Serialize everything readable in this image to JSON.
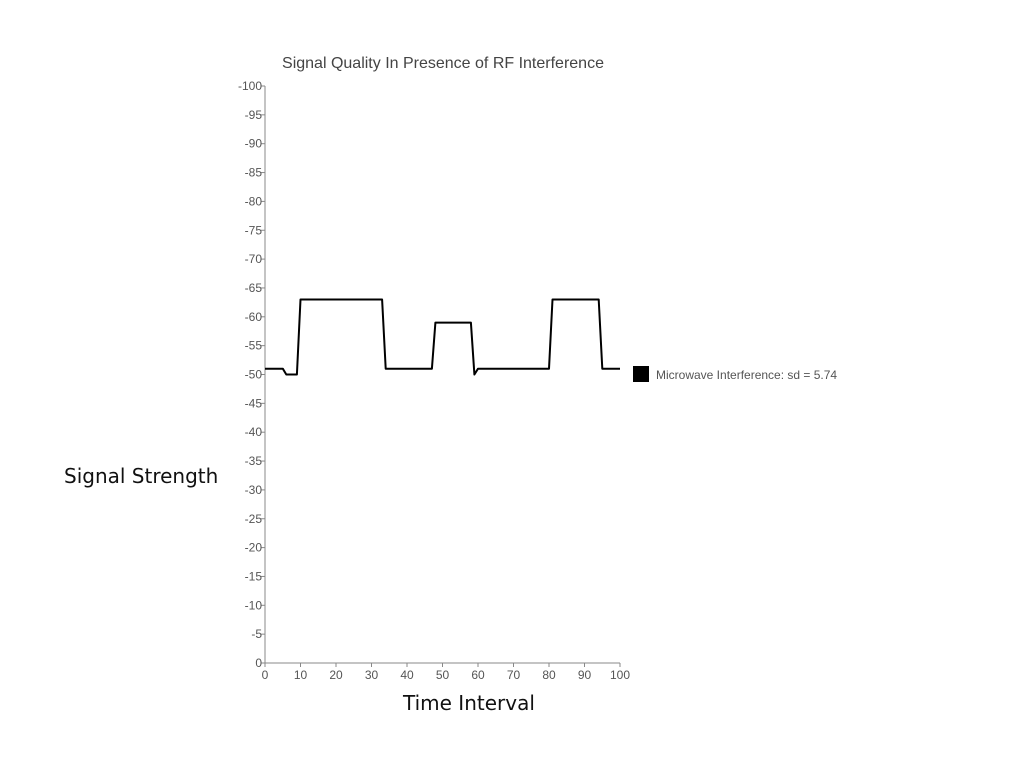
{
  "chart_data": {
    "type": "line",
    "title": "Signal Quality In Presence of RF Interference",
    "xlabel": "Time Interval",
    "ylabel": "Signal Strength",
    "xlim": [
      0,
      100
    ],
    "ylim": [
      0,
      -100
    ],
    "x_ticks": [
      0,
      10,
      20,
      30,
      40,
      50,
      60,
      70,
      80,
      90,
      100
    ],
    "y_ticks": [
      0,
      -5,
      -10,
      -15,
      -20,
      -25,
      -30,
      -35,
      -40,
      -45,
      -50,
      -55,
      -60,
      -65,
      -70,
      -75,
      -80,
      -85,
      -90,
      -95,
      -100
    ],
    "grid": false,
    "legend_position": "right",
    "series": [
      {
        "name": "Microwave Interference: sd = 5.74",
        "color": "#000000",
        "x": [
          0,
          5,
          6,
          9,
          10,
          33,
          34,
          47,
          48,
          58,
          59,
          60,
          80,
          81,
          94,
          95,
          100
        ],
        "y": [
          -51,
          -51,
          -50,
          -50,
          -63,
          -63,
          -51,
          -51,
          -59,
          -59,
          -50,
          -51,
          -51,
          -63,
          -63,
          -51,
          -51
        ]
      }
    ]
  }
}
